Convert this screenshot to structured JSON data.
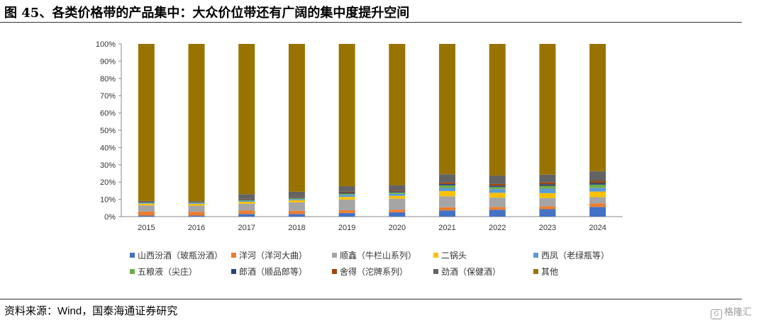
{
  "title": "图 45、各类价格带的产品集中：大众价位带还有广阔的集中度提升空间",
  "source": {
    "prefix": "资料来源：",
    "latin": "Wind",
    "suffix": "，国泰海通证券研究"
  },
  "watermark": {
    "text": "格隆汇",
    "icon": "gelonghui-logo-icon"
  },
  "chart_data": {
    "type": "bar",
    "stacked": true,
    "normalized": true,
    "categories": [
      "2015",
      "2016",
      "2017",
      "2018",
      "2019",
      "2020",
      "2021",
      "2022",
      "2023",
      "2024"
    ],
    "y_ticks": [
      "0%",
      "10%",
      "20%",
      "30%",
      "40%",
      "50%",
      "60%",
      "70%",
      "80%",
      "90%",
      "100%"
    ],
    "ylim": [
      0,
      100
    ],
    "grid": false,
    "legend_position": "bottom",
    "series": [
      {
        "name": "山西汾酒（玻瓶汾酒）",
        "color": "#4472C4",
        "values": [
          0.6,
          0.6,
          1.5,
          1.5,
          2.1,
          2.5,
          3.6,
          4.0,
          4.3,
          5.6
        ]
      },
      {
        "name": "洋河（洋河大曲）",
        "color": "#ED7D31",
        "values": [
          2.3,
          2.2,
          2.0,
          1.8,
          1.6,
          1.5,
          1.8,
          1.6,
          1.7,
          2.1
        ]
      },
      {
        "name": "顺鑫（牛栏山系列）",
        "color": "#A5A5A5",
        "values": [
          3.6,
          3.6,
          4.0,
          5.0,
          6.2,
          6.4,
          6.4,
          5.4,
          4.8,
          3.6
        ]
      },
      {
        "name": "二锅头",
        "color": "#FFC000",
        "values": [
          1.0,
          1.0,
          1.1,
          1.2,
          1.5,
          1.6,
          3.0,
          2.8,
          2.8,
          3.2
        ]
      },
      {
        "name": "西凤（老绿瓶等）",
        "color": "#5B9BD5",
        "values": [
          0.5,
          0.5,
          0.6,
          0.6,
          1.2,
          1.2,
          1.8,
          2.1,
          2.6,
          2.2
        ]
      },
      {
        "name": "五粮液（尖庄）",
        "color": "#70AD47",
        "values": [
          0.3,
          0.3,
          0.4,
          0.6,
          0.7,
          0.8,
          1.5,
          1.2,
          1.6,
          1.8
        ]
      },
      {
        "name": "郎酒（顺品郎等）",
        "color": "#264478",
        "values": [
          0.3,
          0.3,
          0.4,
          0.4,
          0.6,
          0.6,
          0.8,
          0.8,
          0.9,
          1.0
        ]
      },
      {
        "name": "舍得（沱牌系列）",
        "color": "#9E480E",
        "values": [
          0.2,
          0.2,
          0.3,
          0.3,
          0.5,
          0.5,
          0.9,
          1.0,
          1.1,
          1.2
        ]
      },
      {
        "name": "劲酒（保健酒）",
        "color": "#636363",
        "values": [
          0.3,
          0.3,
          2.7,
          3.0,
          3.2,
          3.1,
          4.7,
          4.9,
          4.5,
          5.6
        ]
      },
      {
        "name": "其他",
        "color": "#997300",
        "values": [
          90.9,
          91.0,
          87.0,
          85.6,
          82.4,
          81.8,
          75.5,
          76.2,
          75.7,
          73.7
        ]
      }
    ]
  }
}
